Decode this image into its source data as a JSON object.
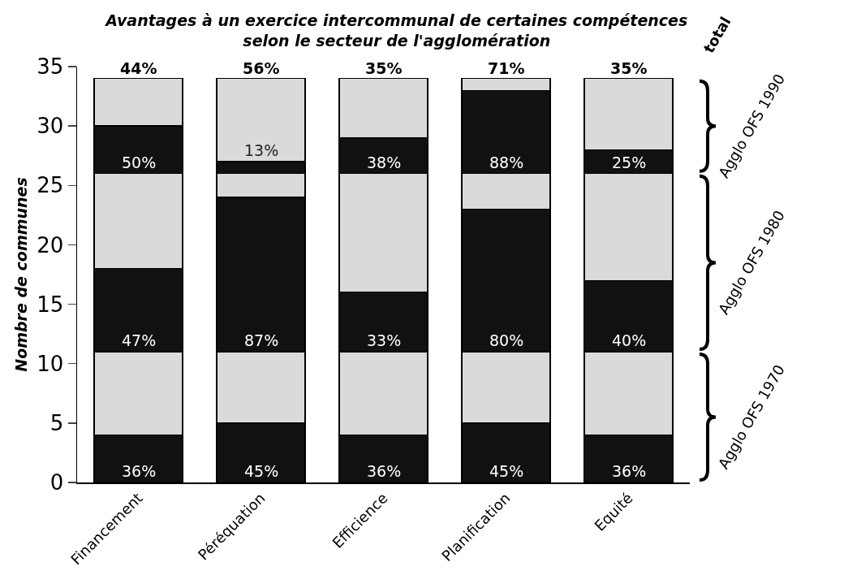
{
  "chart_data": {
    "type": "bar",
    "title": "Avantages à un exercice intercommunal de certaines compétences\nselon le secteur de l'agglomération",
    "ylabel": "Nombre de communes",
    "categories": [
      "Financement",
      "Péréquation",
      "Efficience",
      "Planification",
      "Equité"
    ],
    "stacked": true,
    "grid": false,
    "ylim": [
      0,
      35
    ],
    "yticks": [
      0,
      5,
      10,
      15,
      20,
      25,
      30,
      35
    ],
    "series": [
      {
        "color": "#111111",
        "values": [
          4,
          5,
          4,
          5,
          4
        ]
      },
      {
        "color": "#d9dbd9",
        "values": [
          7,
          6,
          7,
          6,
          7
        ]
      },
      {
        "color": "#111111",
        "values": [
          7,
          13,
          5,
          12,
          6
        ]
      },
      {
        "color": "#d9dbd9",
        "values": [
          8,
          2,
          10,
          3,
          9
        ]
      },
      {
        "color": "#111111",
        "values": [
          4,
          1,
          3,
          7,
          2
        ]
      },
      {
        "color": "#d9dbd9",
        "values": [
          4,
          7,
          5,
          1,
          6
        ]
      }
    ],
    "annotations": [
      "total",
      {
        "text": "36%",
        "x": "Financement",
        "y": 0
      },
      {
        "text": "45%",
        "x": "Péréquation",
        "y": 0
      },
      {
        "text": "36%",
        "x": "Efficience",
        "y": 0
      },
      {
        "text": "45%",
        "x": "Planification",
        "y": 0
      },
      {
        "text": "36%",
        "x": "Equité",
        "y": 0
      },
      {
        "text": "47%",
        "x": "Financement",
        "y": 11
      },
      {
        "text": "87%",
        "x": "Péréquation",
        "y": 11
      },
      {
        "text": "33%",
        "x": "Efficience",
        "y": 11
      },
      {
        "text": "80%",
        "x": "Planification",
        "y": 11
      },
      {
        "text": "40%",
        "x": "Equité",
        "y": 11
      },
      {
        "text": "50%",
        "x": "Financement",
        "y": 26
      },
      {
        "text": "13%",
        "x": "Péréquation",
        "y": 27
      },
      {
        "text": "38%",
        "x": "Efficience",
        "y": 26
      },
      {
        "text": "88%",
        "x": "Planification",
        "y": 26
      },
      {
        "text": "25%",
        "x": "Equité",
        "y": 26
      },
      {
        "text": "44%",
        "x": "Financement",
        "y": 34
      },
      {
        "text": "56%",
        "x": "Péréquation",
        "y": 34
      },
      {
        "text": "35%",
        "x": "Efficience",
        "y": 34
      },
      {
        "text": "71%",
        "x": "Planification",
        "y": 34
      },
      {
        "text": "35%",
        "x": "Equité",
        "y": 34
      },
      "Agglo OFS 1990",
      "Agglo OFS 1980",
      "Agglo OFS 1970"
    ]
  }
}
